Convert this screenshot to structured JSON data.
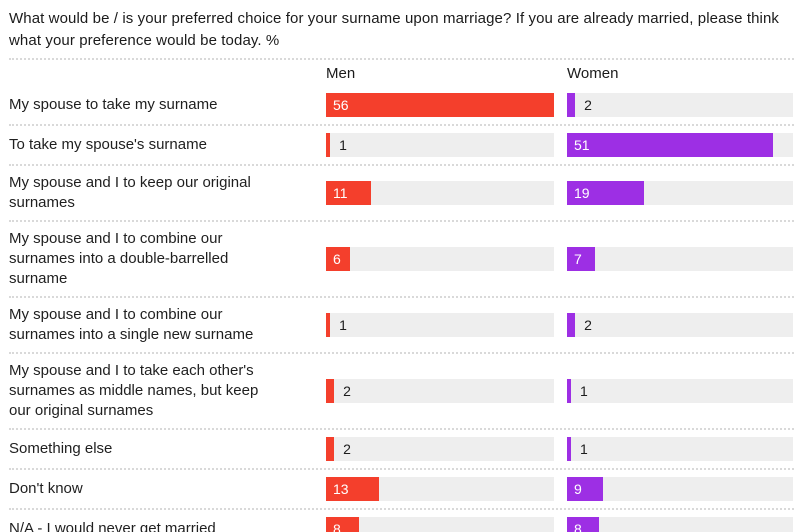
{
  "title": "What would be / is your preferred choice for your surname upon marriage? If you are already married, please think what your preference would be today. %",
  "columns": {
    "men": "Men",
    "women": "Women"
  },
  "colors": {
    "men_bar": "#f43f2c",
    "women_bar": "#9d2fe4",
    "track": "#eeeeee",
    "separator": "#d9d9d9",
    "value_inside": "#ffffff",
    "value_outside": "#1c1c1c"
  },
  "chart_data": {
    "type": "bar",
    "orientation": "horizontal",
    "title": "What would be / is your preferred choice for your surname upon marriage? If you are already married, please think what your preference would be today. %",
    "categories": [
      "My spouse to take my surname",
      "To take my spouse's surname",
      "My spouse and I to keep our original surnames",
      "My spouse and I to combine our surnames into a double-barrelled surname",
      "My spouse and I to combine our surnames into a single new surname",
      "My spouse and I to take each other's surnames as middle names, but keep our original surnames",
      "Something else",
      "Don't know",
      "N/A - I would never get married"
    ],
    "series": [
      {
        "name": "Men",
        "color": "#f43f2c",
        "values": [
          56,
          1,
          11,
          6,
          1,
          2,
          2,
          13,
          8
        ]
      },
      {
        "name": "Women",
        "color": "#9d2fe4",
        "values": [
          2,
          51,
          19,
          7,
          2,
          1,
          1,
          9,
          8
        ]
      }
    ],
    "xlim": [
      0,
      56
    ],
    "value_labels": "shown at bar start; white inside bar when value >= 6, dark outside otherwise",
    "grid": false,
    "legend_position": "column headers above each bar group"
  }
}
